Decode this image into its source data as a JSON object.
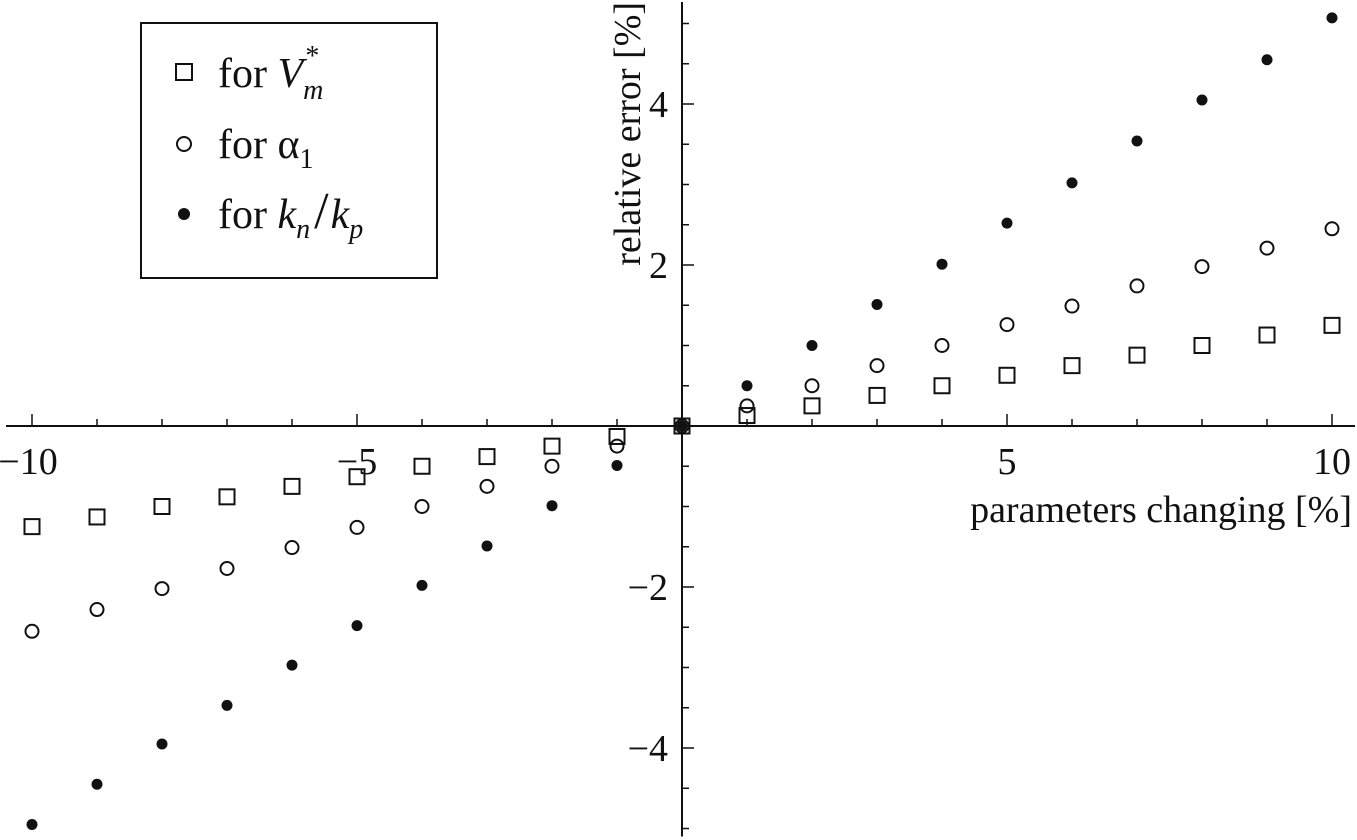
{
  "chart_data": {
    "type": "scatter",
    "xlabel": "parameters changing [%]",
    "ylabel": "relative error [%]",
    "xlim": [
      -10.4,
      10.4
    ],
    "ylim": [
      -5.1,
      5.3
    ],
    "xticks": [
      {
        "value": -10,
        "label": "−10"
      },
      {
        "value": -5,
        "label": "−5"
      },
      {
        "value": 5,
        "label": "5"
      },
      {
        "value": 10,
        "label": "10"
      }
    ],
    "yticks": [
      {
        "value": -4,
        "label": "−4"
      },
      {
        "value": -2,
        "label": "−2"
      },
      {
        "value": 2,
        "label": "2"
      },
      {
        "value": 4,
        "label": "4"
      }
    ],
    "grid": false,
    "legend_position": "top-left",
    "series": [
      {
        "name": "for V_m^*",
        "legend_prefix": "for",
        "legend_main": "V",
        "legend_sub": "m",
        "legend_sup": "*",
        "marker": "open-square",
        "x": [
          -10,
          -9,
          -8,
          -7,
          -6,
          -5,
          -4,
          -3,
          -2,
          -1,
          0,
          1,
          2,
          3,
          4,
          5,
          6,
          7,
          8,
          9,
          10
        ],
        "y": [
          -1.25,
          -1.13,
          -1.0,
          -0.88,
          -0.75,
          -0.63,
          -0.5,
          -0.38,
          -0.25,
          -0.13,
          0,
          0.13,
          0.25,
          0.38,
          0.5,
          0.63,
          0.75,
          0.88,
          1.0,
          1.13,
          1.25
        ]
      },
      {
        "name": "for α_1",
        "legend_prefix": "for",
        "legend_main": "α",
        "legend_sub": "1",
        "legend_sup": "",
        "marker": "open-circle",
        "x": [
          -10,
          -9,
          -8,
          -7,
          -6,
          -5,
          -4,
          -3,
          -2,
          -1,
          0,
          1,
          2,
          3,
          4,
          5,
          6,
          7,
          8,
          9,
          10
        ],
        "y": [
          -2.55,
          -2.28,
          -2.02,
          -1.77,
          -1.51,
          -1.26,
          -1.0,
          -0.75,
          -0.5,
          -0.25,
          0,
          0.25,
          0.5,
          0.75,
          1.0,
          1.26,
          1.49,
          1.74,
          1.98,
          2.21,
          2.45
        ]
      },
      {
        "name": "for k_n/k_p",
        "legend_prefix": "for",
        "legend_main": "k",
        "legend_sub": "n",
        "legend_main2": "k",
        "legend_sub2": "p",
        "marker": "filled-circle",
        "x": [
          -10,
          -9,
          -8,
          -7,
          -6,
          -5,
          -4,
          -3,
          -2,
          -1,
          0,
          1,
          2,
          3,
          4,
          5,
          6,
          7,
          8,
          9,
          10
        ],
        "y": [
          -4.95,
          -4.45,
          -3.95,
          -3.47,
          -2.97,
          -2.48,
          -1.98,
          -1.49,
          -0.99,
          -0.49,
          0,
          0.5,
          1.0,
          1.51,
          2.01,
          2.52,
          3.02,
          3.54,
          4.05,
          4.55,
          5.07
        ]
      }
    ]
  }
}
